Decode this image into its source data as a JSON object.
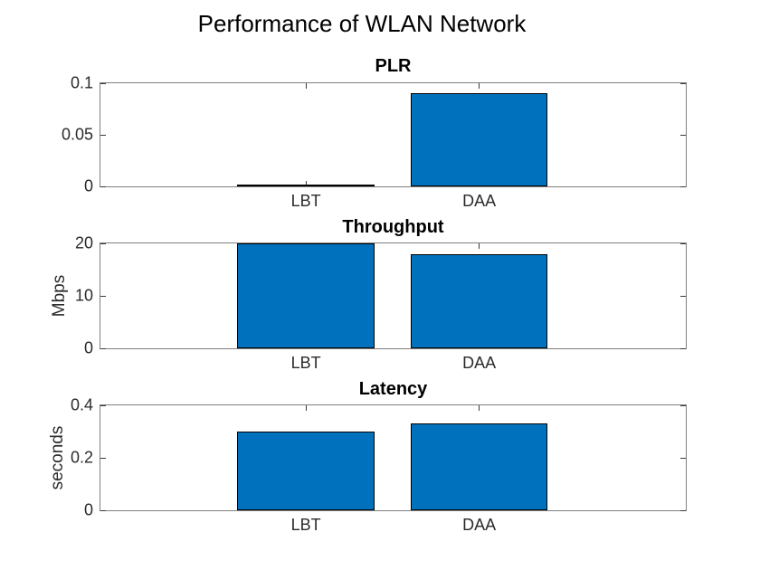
{
  "figure_title": "Performance of WLAN Network",
  "colors": {
    "bar_fill": "#0072BD",
    "bar_edge": "#000000",
    "axis_line": "#7f7f7f",
    "tick_mark": "#3a3a3a",
    "tick_label": "#2b2b2b",
    "title_color": "#000000"
  },
  "chart_data": [
    {
      "type": "bar",
      "title": "PLR",
      "ylabel": "",
      "xlabel": "",
      "categories": [
        "LBT",
        "DAA"
      ],
      "values": [
        0.001,
        0.09
      ],
      "ylim": [
        0,
        0.1
      ],
      "yticks": [
        0,
        0.05,
        0.1
      ],
      "ytick_labels": [
        "0",
        "0.05",
        "0.1"
      ],
      "grid": "off",
      "legend": "none"
    },
    {
      "type": "bar",
      "title": "Throughput",
      "ylabel": "Mbps",
      "xlabel": "",
      "categories": [
        "LBT",
        "DAA"
      ],
      "values": [
        20,
        18
      ],
      "ylim": [
        0,
        20
      ],
      "yticks": [
        0,
        10,
        20
      ],
      "ytick_labels": [
        "0",
        "10",
        "20"
      ],
      "grid": "off",
      "legend": "none"
    },
    {
      "type": "bar",
      "title": "Latency",
      "ylabel": "seconds",
      "xlabel": "",
      "categories": [
        "LBT",
        "DAA"
      ],
      "values": [
        0.3,
        0.33
      ],
      "ylim": [
        0,
        0.4
      ],
      "yticks": [
        0,
        0.2,
        0.4
      ],
      "ytick_labels": [
        "0",
        "0.2",
        "0.4"
      ],
      "grid": "off",
      "legend": "none"
    }
  ]
}
